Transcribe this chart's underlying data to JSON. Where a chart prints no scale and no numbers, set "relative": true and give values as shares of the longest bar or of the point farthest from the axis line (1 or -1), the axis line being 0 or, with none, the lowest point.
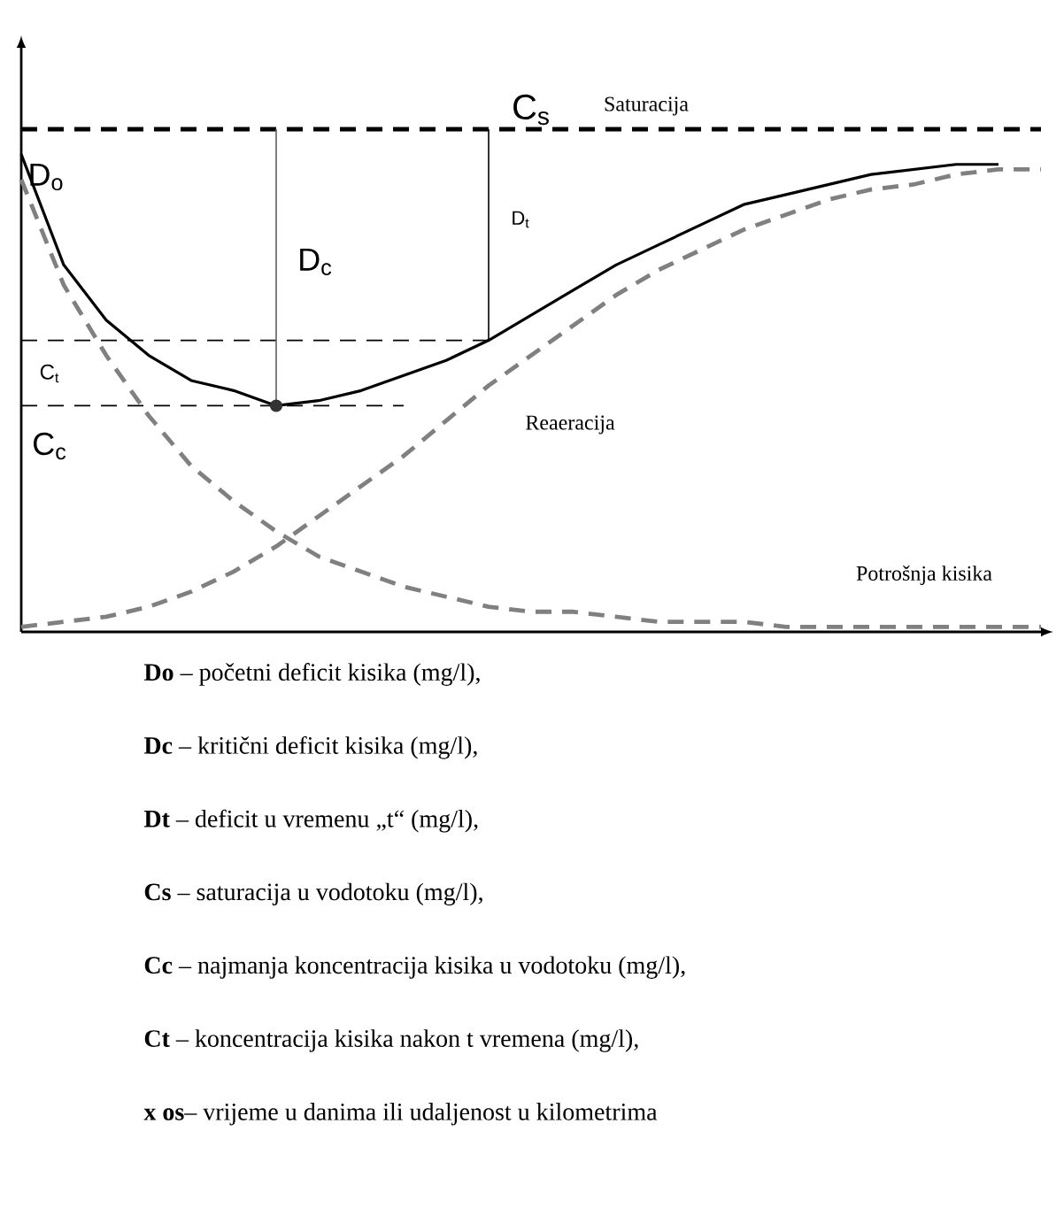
{
  "chart_data": {
    "type": "line",
    "relative": true,
    "categories": [
      null,
      null,
      null,
      null,
      null,
      null,
      null,
      null,
      null,
      null,
      null,
      null,
      null,
      null,
      null,
      null,
      null,
      null,
      null,
      null,
      null,
      null,
      null,
      null,
      null
    ],
    "series": [
      {
        "color": "#000000",
        "line_style": "dashed",
        "values": [
          1,
          1,
          1,
          1,
          1,
          1,
          1,
          1,
          1,
          1,
          1,
          1,
          1,
          1,
          1,
          1,
          1,
          1,
          1,
          1,
          1,
          1,
          1,
          1,
          1
        ]
      },
      {
        "color": "#000000",
        "line_style": "solid",
        "values": [
          0.95,
          0.73,
          0.62,
          0.55,
          0.5,
          0.48,
          0.45,
          0.46,
          0.48,
          0.51,
          0.54,
          0.58,
          0.63,
          0.68,
          0.73,
          0.77,
          0.81,
          0.85,
          0.87,
          0.89,
          0.91,
          0.92,
          0.93,
          0.93,
          null
        ]
      },
      {
        "color": "#808080",
        "line_style": "dashed",
        "values": [
          0.01,
          0.02,
          0.03,
          0.05,
          0.08,
          0.12,
          0.17,
          0.23,
          0.29,
          0.35,
          0.42,
          0.49,
          0.55,
          0.61,
          0.67,
          0.72,
          0.76,
          0.8,
          0.83,
          0.86,
          0.88,
          0.89,
          0.91,
          0.92,
          0.92
        ]
      },
      {
        "color": "#808080",
        "line_style": "dashed",
        "values": [
          0.9,
          0.69,
          0.55,
          0.43,
          0.33,
          0.26,
          0.2,
          0.15,
          0.12,
          0.09,
          0.07,
          0.05,
          0.04,
          0.04,
          0.03,
          0.02,
          0.02,
          0.02,
          0.01,
          0.01,
          0.01,
          0.01,
          0.01,
          0.01,
          0.01
        ]
      },
      {
        "color": "#000000",
        "line_style": "dashed",
        "values": [
          0.58,
          0.58,
          0.58,
          0.58,
          0.58,
          0.58,
          0.58,
          0.58,
          0.58,
          0.58,
          0.58,
          0.58,
          null,
          null,
          null,
          null,
          null,
          null,
          null,
          null,
          null,
          null,
          null,
          null,
          null
        ]
      },
      {
        "color": "#000000",
        "line_style": "dashed",
        "values": [
          0.45,
          0.45,
          0.45,
          0.45,
          0.45,
          0.45,
          0.45,
          0.45,
          0.45,
          0.45,
          null,
          null,
          null,
          null,
          null,
          null,
          null,
          null,
          null,
          null,
          null,
          null,
          null,
          null,
          null
        ]
      }
    ],
    "annotations": [
      "C$_{s}$",
      "Saturacija",
      "D$_{o}$",
      "D$_{c}$",
      "D$_{t}$",
      "C$_{t}$",
      "C$_{c}$",
      "Reaeracija",
      "Potrošnja kisika",
      "**Do** – početni deficit kisika (mg/l),",
      "**Dc** – kritični deficit kisika (mg/l),",
      "**Dt** – deficit u vremenu „t“ (mg/l),",
      "**Cs** – saturacija u vodotoku (mg/l),",
      "**Cc** – najmanja koncentracija kisika u vodotoku (mg/l),",
      "**Ct** – koncentracija kisika nakon t vremena (mg/l),",
      "**x os**– vrijeme u danima ili udaljenost u kilometrima"
    ]
  }
}
